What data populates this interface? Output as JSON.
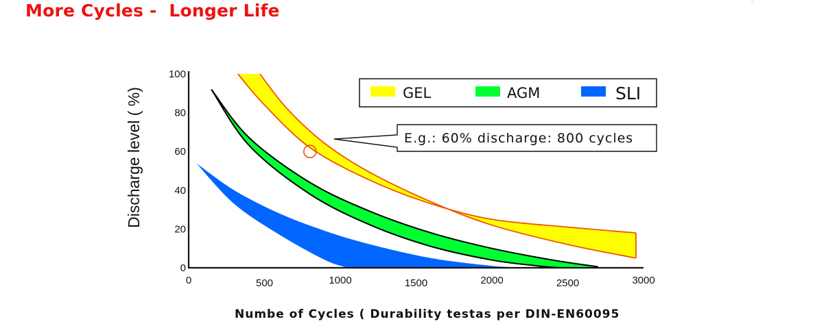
{
  "title": "More Cycles -  Longer Life",
  "corner_mark": "°",
  "chart_data": {
    "type": "area",
    "title": "More Cycles -  Longer Life",
    "xlabel": "Numbe of Cycles ( Durability testas per DIN-EN60095",
    "ylabel": "Discharge level ( %)",
    "xlim": [
      0,
      3000
    ],
    "ylim": [
      0,
      100
    ],
    "x_ticks": [
      "0",
      "500",
      "1000",
      "1500",
      "2000",
      "2500",
      "3000"
    ],
    "y_ticks": [
      "0",
      "20",
      "40",
      "60",
      "80",
      "100"
    ],
    "grid": false,
    "legend_position": "top-right",
    "colors": {
      "GEL": "#ffff00",
      "GEL_edge": "#ee5500",
      "AGM": "#00ff33",
      "SLI": "#0066ff"
    },
    "series": [
      {
        "name": "GEL",
        "upper": [
          [
            325,
            100
          ],
          [
            500,
            84
          ],
          [
            800,
            62
          ],
          [
            1200,
            45
          ],
          [
            1600,
            33
          ],
          [
            2000,
            25
          ],
          [
            2500,
            21
          ],
          [
            2950,
            18
          ]
        ],
        "lower": [
          [
            470,
            100
          ],
          [
            650,
            82
          ],
          [
            900,
            64
          ],
          [
            1200,
            49
          ],
          [
            1600,
            34
          ],
          [
            2000,
            22
          ],
          [
            2500,
            12
          ],
          [
            2950,
            5
          ]
        ]
      },
      {
        "name": "AGM",
        "upper": [
          [
            150,
            92
          ],
          [
            400,
            67
          ],
          [
            800,
            44
          ],
          [
            1200,
            29
          ],
          [
            1600,
            18
          ],
          [
            2000,
            10
          ],
          [
            2400,
            4
          ],
          [
            2700,
            0.5
          ]
        ],
        "lower": [
          [
            150,
            92
          ],
          [
            400,
            63
          ],
          [
            800,
            38
          ],
          [
            1200,
            22
          ],
          [
            1600,
            11
          ],
          [
            2000,
            4
          ],
          [
            2300,
            1
          ],
          [
            2450,
            0
          ]
        ]
      },
      {
        "name": "SLI",
        "upper": [
          [
            50,
            54
          ],
          [
            300,
            40
          ],
          [
            600,
            28
          ],
          [
            900,
            19
          ],
          [
            1200,
            12
          ],
          [
            1600,
            5
          ],
          [
            2000,
            1
          ],
          [
            2250,
            0
          ]
        ],
        "lower": [
          [
            50,
            54
          ],
          [
            300,
            33
          ],
          [
            600,
            17
          ],
          [
            900,
            4
          ],
          [
            1050,
            0
          ]
        ]
      }
    ],
    "annotation": {
      "text": "E.g.: 60% discharge: 800 cycles",
      "x": 800,
      "y": 60
    }
  }
}
